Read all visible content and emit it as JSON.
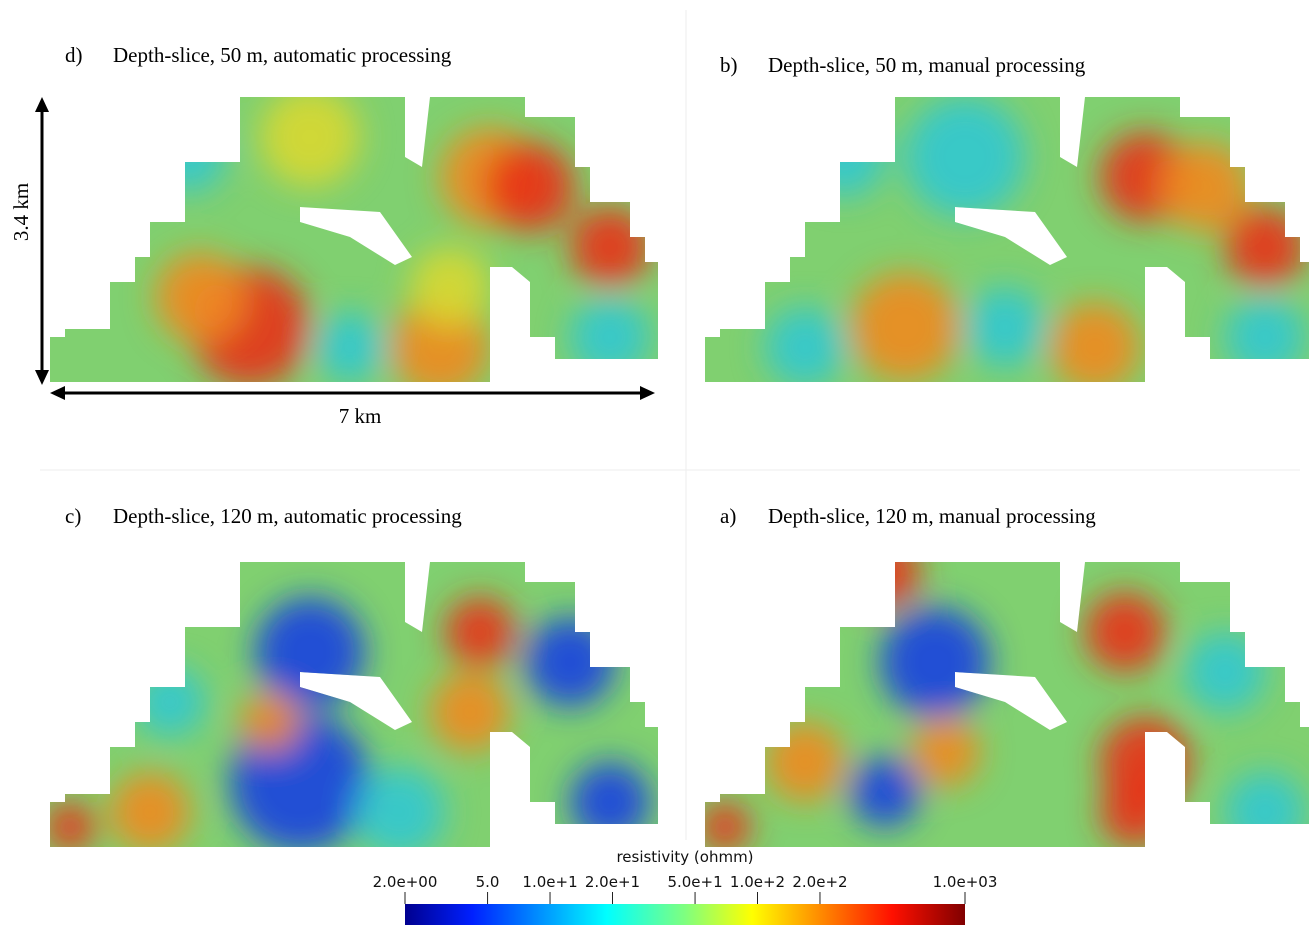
{
  "panels": [
    {
      "label": "d)",
      "title": "Depth-slice, 50 m, automatic processing"
    },
    {
      "label": "b)",
      "title": "Depth-slice, 50 m, manual processing"
    },
    {
      "label": "c)",
      "title": "Depth-slice, 120 m, automatic processing"
    },
    {
      "label": "a)",
      "title": "Depth-slice, 120 m, manual processing"
    }
  ],
  "scale_annotations": {
    "height": "3.4 km",
    "width": "7 km"
  },
  "colorbar": {
    "title": "resistivity (ohmm)",
    "log_scale": true,
    "lim": [
      2,
      1000
    ],
    "ticks": [
      {
        "value": 2,
        "label": "2.0e+00"
      },
      {
        "value": 5,
        "label": "5.0"
      },
      {
        "value": 10,
        "label": "1.0e+1"
      },
      {
        "value": 20,
        "label": "2.0e+1"
      },
      {
        "value": 50,
        "label": "5.0e+1"
      },
      {
        "value": 100,
        "label": "1.0e+2"
      },
      {
        "value": 200,
        "label": "2.0e+2"
      },
      {
        "value": 1000,
        "label": "1.0e+03"
      }
    ]
  }
}
